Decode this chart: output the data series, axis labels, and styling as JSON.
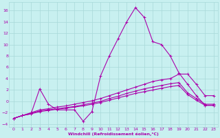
{
  "bg_color": "#c8f0f0",
  "grid_color": "#a8d8d8",
  "line_color": "#aa00aa",
  "xlabel": "Windchill (Refroidissement éolien,°C)",
  "xlim": [
    -0.5,
    23.5
  ],
  "ylim": [
    -4.5,
    17.5
  ],
  "xticks": [
    0,
    1,
    2,
    3,
    4,
    5,
    6,
    7,
    8,
    9,
    10,
    11,
    12,
    13,
    14,
    15,
    16,
    17,
    18,
    19,
    20,
    21,
    22,
    23
  ],
  "yticks": [
    -4,
    -2,
    0,
    2,
    4,
    6,
    8,
    10,
    12,
    14,
    16
  ],
  "series": [
    {
      "comment": "main spike line",
      "x": [
        0,
        1,
        2,
        3,
        4,
        5,
        6,
        7,
        8,
        9,
        10,
        11,
        12,
        13,
        14,
        15,
        16,
        17,
        18,
        19,
        20,
        21,
        22,
        23
      ],
      "y": [
        -3,
        -2.5,
        -2.2,
        2.2,
        -0.5,
        -1.5,
        -1.5,
        -1.5,
        -3.5,
        -1.8,
        4.5,
        8,
        11,
        14,
        16.5,
        14.8,
        10.5,
        10,
        8,
        5,
        3,
        1,
        -0.7,
        -0.7
      ]
    },
    {
      "comment": "upper gentle line",
      "x": [
        0,
        1,
        2,
        3,
        4,
        5,
        6,
        7,
        8,
        9,
        10,
        11,
        12,
        13,
        14,
        15,
        16,
        17,
        18,
        19,
        20,
        21,
        22,
        23
      ],
      "y": [
        -3,
        -2.5,
        -2.0,
        -1.5,
        -1.3,
        -1.0,
        -0.8,
        -0.5,
        -0.2,
        0.1,
        0.5,
        1.0,
        1.5,
        2.0,
        2.5,
        3.0,
        3.5,
        3.8,
        4.0,
        4.8,
        4.8,
        3.0,
        1.0,
        1.0
      ]
    },
    {
      "comment": "middle gentle line",
      "x": [
        0,
        1,
        2,
        3,
        4,
        5,
        6,
        7,
        8,
        9,
        10,
        11,
        12,
        13,
        14,
        15,
        16,
        17,
        18,
        19,
        20,
        21,
        22,
        23
      ],
      "y": [
        -3,
        -2.5,
        -2.1,
        -1.7,
        -1.5,
        -1.3,
        -1.1,
        -0.9,
        -0.6,
        -0.3,
        0.0,
        0.5,
        0.9,
        1.4,
        1.8,
        2.2,
        2.5,
        2.8,
        3.1,
        3.3,
        1.5,
        0.5,
        -0.5,
        -0.5
      ]
    },
    {
      "comment": "lower gentle line",
      "x": [
        0,
        1,
        2,
        3,
        4,
        5,
        6,
        7,
        8,
        9,
        10,
        11,
        12,
        13,
        14,
        15,
        16,
        17,
        18,
        19,
        20,
        21,
        22,
        23
      ],
      "y": [
        -3,
        -2.5,
        -2.2,
        -1.8,
        -1.6,
        -1.4,
        -1.2,
        -1.0,
        -0.8,
        -0.5,
        -0.2,
        0.2,
        0.6,
        1.0,
        1.4,
        1.7,
        2.0,
        2.3,
        2.6,
        2.8,
        1.2,
        0.2,
        -0.7,
        -0.7
      ]
    }
  ]
}
